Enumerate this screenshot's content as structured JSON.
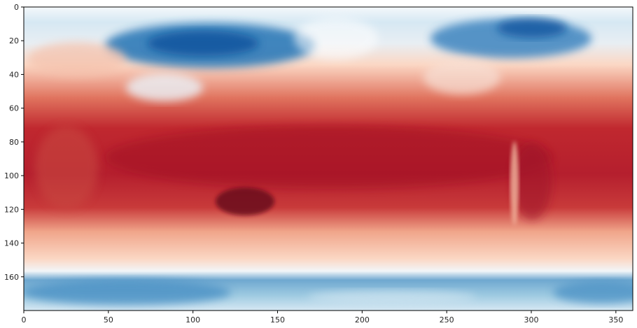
{
  "chart_data": {
    "type": "heatmap",
    "title": "",
    "xlabel": "",
    "ylabel": "",
    "xlim": [
      0,
      360
    ],
    "ylim": [
      180,
      0
    ],
    "y_axis_inverted": true,
    "grid": false,
    "colorbar": false,
    "colormap": "RdBu_r",
    "x_ticks": [
      {
        "value": 0,
        "label": "0"
      },
      {
        "value": 50,
        "label": "50"
      },
      {
        "value": 100,
        "label": "100"
      },
      {
        "value": 150,
        "label": "150"
      },
      {
        "value": 200,
        "label": "200"
      },
      {
        "value": 250,
        "label": "250"
      },
      {
        "value": 300,
        "label": "300"
      },
      {
        "value": 350,
        "label": "350"
      }
    ],
    "y_ticks": [
      {
        "value": 0,
        "label": "0"
      },
      {
        "value": 20,
        "label": "20"
      },
      {
        "value": 40,
        "label": "40"
      },
      {
        "value": 60,
        "label": "60"
      },
      {
        "value": 80,
        "label": "80"
      },
      {
        "value": 100,
        "label": "100"
      },
      {
        "value": 120,
        "label": "120"
      },
      {
        "value": 140,
        "label": "140"
      },
      {
        "value": 160,
        "label": "160"
      }
    ],
    "colors": {
      "deep_blue": "#08519c",
      "blue": "#2f7ab8",
      "light_blue": "#9ecae1",
      "pale_blue": "#d6e8f3",
      "white": "#f7f7f7",
      "pale_red": "#fbd7c4",
      "light_red": "#f09a80",
      "red": "#d6604d",
      "strong_red": "#c0282f",
      "dark_red": "#8b0a23"
    }
  }
}
